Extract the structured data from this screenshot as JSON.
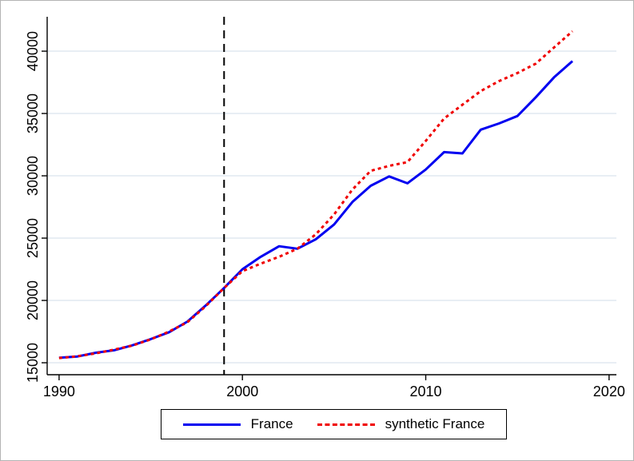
{
  "chart_data": {
    "type": "line",
    "title": "",
    "xlabel": "",
    "ylabel": "",
    "x": [
      1990,
      1991,
      1992,
      1993,
      1994,
      1995,
      1996,
      1997,
      1998,
      1999,
      2000,
      2001,
      2002,
      2003,
      2004,
      2005,
      2006,
      2007,
      2008,
      2009,
      2010,
      2011,
      2012,
      2013,
      2014,
      2015,
      2016,
      2017,
      2018
    ],
    "series": [
      {
        "name": "France",
        "color": "#0000f0",
        "style": "solid",
        "values": [
          15400,
          15500,
          15800,
          16000,
          16400,
          16900,
          17450,
          18300,
          19600,
          21000,
          22500,
          23500,
          24350,
          24150,
          24900,
          26100,
          27900,
          29200,
          29950,
          29400,
          30500,
          31900,
          31800,
          33700,
          34200,
          34800,
          36300,
          37900,
          39200
        ]
      },
      {
        "name": "synthetic France",
        "color": "#f00000",
        "style": "dotted",
        "values": [
          15380,
          15520,
          15750,
          16050,
          16380,
          16880,
          17500,
          18250,
          19550,
          21000,
          22350,
          22950,
          23500,
          24150,
          25300,
          26900,
          28900,
          30400,
          30800,
          31100,
          32800,
          34600,
          35700,
          36800,
          37600,
          38250,
          39000,
          40300,
          41600
        ]
      }
    ],
    "x_ticks": [
      "1990",
      "2000",
      "2010",
      "2020"
    ],
    "x_tick_values": [
      1990,
      2000,
      2010,
      2020
    ],
    "y_ticks": [
      "15000",
      "20000",
      "25000",
      "30000",
      "35000",
      "40000"
    ],
    "y_tick_values": [
      15000,
      20000,
      25000,
      30000,
      35000,
      40000
    ],
    "xlim": [
      1989.35,
      2020.4
    ],
    "ylim": [
      14040,
      42760
    ],
    "grid": "horizontal",
    "gridline_color": "#e8eef4",
    "treatment_line": {
      "x": 1999,
      "style": "dashed",
      "color": "#000000"
    },
    "legend_position": "bottom",
    "legend_border": true
  }
}
